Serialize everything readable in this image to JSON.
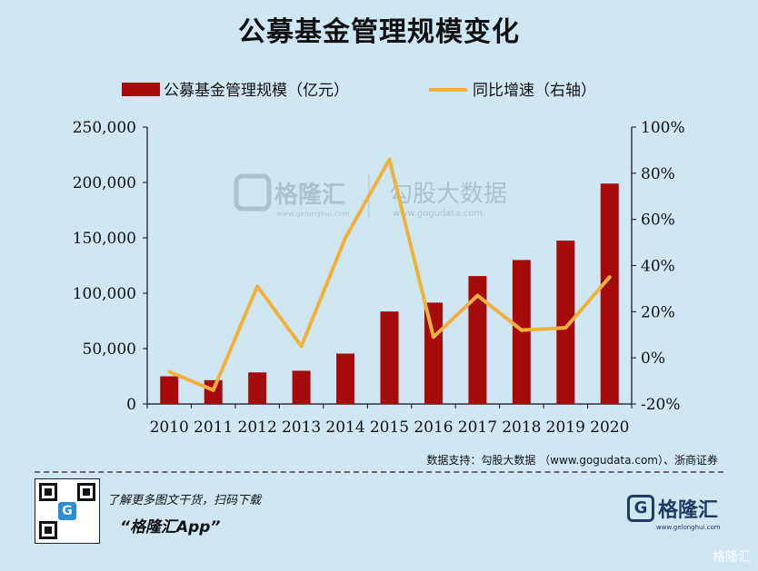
{
  "title": "公募基金管理规模变化",
  "legend": {
    "bar_label": "公募基金管理规模（亿元）",
    "line_label": "同比增速（右轴）"
  },
  "watermark": {
    "brand": "格隆汇",
    "brand_url": "www.gelonghui.com",
    "brand2": "勾股大数据",
    "brand2_url": "www.gogudata.com"
  },
  "source_note": "数据支持：勾股大数据 （www.gogudata.com）、浙商证券",
  "footer": {
    "promo_text": "了解更多图文干货，扫码下载",
    "app_name": "“格隆汇App”",
    "brand_name": "格隆汇",
    "brand_url": "www.gelonghui.com",
    "corner_watermark": "格隆汇"
  },
  "colors": {
    "bar": "#a50b0b",
    "line": "#f0b23c",
    "background": "#cfe6f3"
  },
  "chart_data": {
    "type": "bar",
    "categories": [
      "2010",
      "2011",
      "2012",
      "2013",
      "2014",
      "2015",
      "2016",
      "2017",
      "2018",
      "2019",
      "2020"
    ],
    "series": [
      {
        "name": "公募基金管理规模（亿元）",
        "type": "bar",
        "axis": "left",
        "values": [
          25000,
          21500,
          28500,
          30000,
          45500,
          83500,
          91500,
          115500,
          130000,
          147500,
          199000
        ]
      },
      {
        "name": "同比增速（右轴）",
        "type": "line",
        "axis": "right",
        "values": [
          -6,
          -14,
          31,
          5,
          52,
          86,
          9,
          27,
          12,
          13,
          35
        ]
      }
    ],
    "y_left": {
      "ylim": [
        0,
        250000
      ],
      "ticks": [
        "0",
        "50,000",
        "100,000",
        "150,000",
        "200,000",
        "250,000"
      ]
    },
    "y_right": {
      "ylim": [
        -20,
        100
      ],
      "ticks": [
        "-20%",
        "0%",
        "20%",
        "40%",
        "60%",
        "80%",
        "100%"
      ]
    },
    "legend_position": "top",
    "grid": false
  }
}
